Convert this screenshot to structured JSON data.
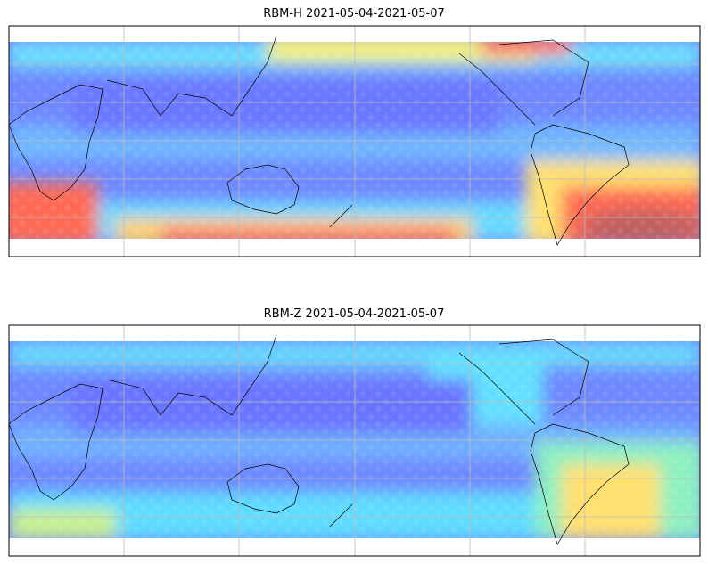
{
  "panels": [
    {
      "title": "RBM-H 2021-05-04-2021-05-07"
    },
    {
      "title": "RBM-Z 2021-05-04-2021-05-07"
    }
  ]
}
